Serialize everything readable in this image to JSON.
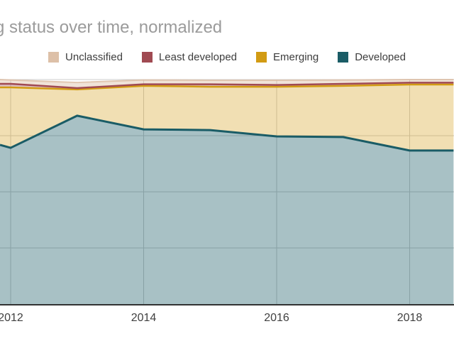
{
  "title": "g status over time, normalized",
  "colors": {
    "title_text": "#9b9b9b",
    "legend_text": "#3d3d3d",
    "axis_label_text": "#404040",
    "gridline": "#cccccc",
    "baseline": "#333333",
    "background": "#ffffff"
  },
  "legend": {
    "items": [
      {
        "label": "Unclassified",
        "color": "#ddc0a8"
      },
      {
        "label": "Least developed",
        "color": "#a04a52"
      },
      {
        "label": "Emerging",
        "color": "#d29b13"
      },
      {
        "label": "Developed",
        "color": "#1a5c66"
      }
    ]
  },
  "x_axis": {
    "ticks": [
      {
        "label": "2012",
        "year": 2012
      },
      {
        "label": "2014",
        "year": 2014
      },
      {
        "label": "2016",
        "year": 2016
      },
      {
        "label": "2018",
        "year": 2018
      }
    ]
  },
  "chart_data": {
    "type": "area",
    "stacked": true,
    "normalized": true,
    "title": "g status over time, normalized",
    "legend_position": "top",
    "edges_clipped": true,
    "x_years": [
      2011.84,
      2012,
      2013,
      2014,
      2015,
      2016,
      2017,
      2018,
      2018.66
    ],
    "series": [
      {
        "name": "Developed",
        "color": "#1a5c66",
        "fill_opacity": 0.38,
        "stroke_width": 3,
        "stroke_opacity": 1,
        "values": [
          70.9,
          69.6,
          83.9,
          77.8,
          77.5,
          74.7,
          74.4,
          68.4,
          68.4
        ]
      },
      {
        "name": "Emerging",
        "color": "#d29b13",
        "fill_opacity": 0.32,
        "stroke_width": 2.5,
        "stroke_opacity": 1,
        "values": [
          25.6,
          26.9,
          11.7,
          19.4,
          19.3,
          22.1,
          22.8,
          29.4,
          29.4
        ]
      },
      {
        "name": "Least developed",
        "color": "#a04a52",
        "fill_opacity": 0.35,
        "stroke_width": 2.5,
        "stroke_opacity": 1,
        "values": [
          1.6,
          1.6,
          0.6,
          0.7,
          1.1,
          0.8,
          0.9,
          0.8,
          0.8
        ]
      },
      {
        "name": "Unclassified",
        "color": "#ddc0a8",
        "fill_opacity": 0.45,
        "stroke_width": 2,
        "stroke_opacity": 0.85,
        "values": [
          1.9,
          1.7,
          2.5,
          1.9,
          1.8,
          2.1,
          1.7,
          1.4,
          1.4
        ]
      }
    ],
    "ylim": [
      0,
      100
    ],
    "y_gridlines_percent": [
      25,
      50,
      75,
      100
    ],
    "grid": true
  }
}
